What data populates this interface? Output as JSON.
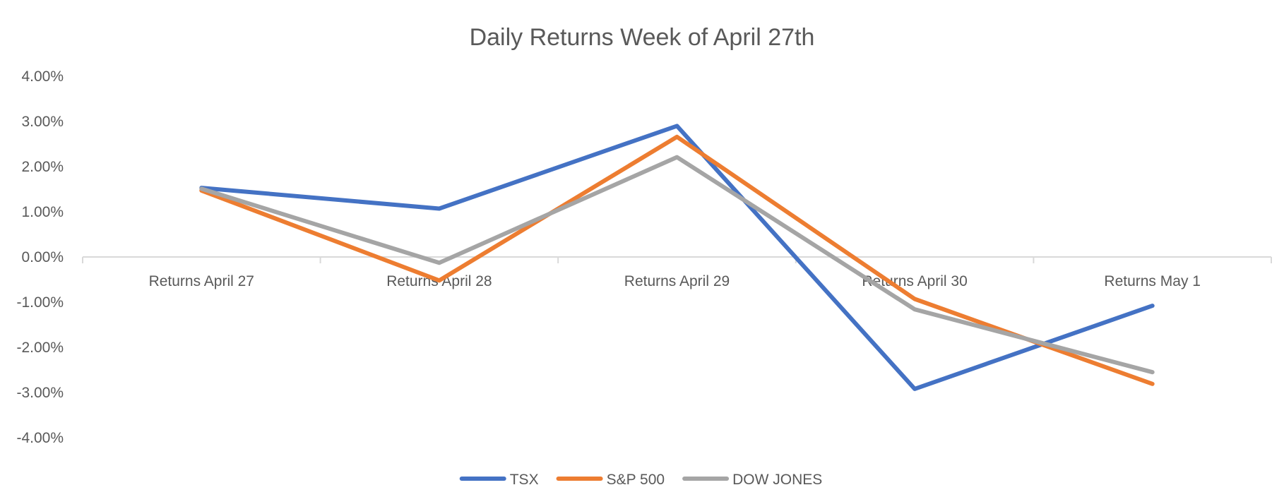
{
  "chart_data": {
    "type": "line",
    "title": "Daily Returns Week of April 27th",
    "xlabel": "",
    "ylabel": "",
    "categories": [
      "Returns April 27",
      "Returns April 28",
      "Returns April 29",
      "Returns April 30",
      "Returns May 1"
    ],
    "ylim": [
      -0.04,
      0.04
    ],
    "yticks": [
      0.04,
      0.03,
      0.02,
      0.01,
      0.0,
      -0.01,
      -0.02,
      -0.03,
      -0.04
    ],
    "ytick_labels": [
      "4.00%",
      "3.00%",
      "2.00%",
      "1.00%",
      "0.00%",
      "-1.00%",
      "-2.00%",
      "-3.00%",
      "-4.00%"
    ],
    "grid": false,
    "legend_position": "bottom",
    "series": [
      {
        "name": "TSX",
        "color": "#4472C4",
        "values": [
          0.0153,
          0.0107,
          0.029,
          -0.0292,
          -0.0108
        ]
      },
      {
        "name": "S&P 500",
        "color": "#ED7D31",
        "values": [
          0.0147,
          -0.0052,
          0.0266,
          -0.0093,
          -0.0281
        ]
      },
      {
        "name": "DOW JONES",
        "color": "#A5A5A5",
        "values": [
          0.0151,
          -0.0013,
          0.0221,
          -0.0116,
          -0.0255
        ]
      }
    ]
  }
}
